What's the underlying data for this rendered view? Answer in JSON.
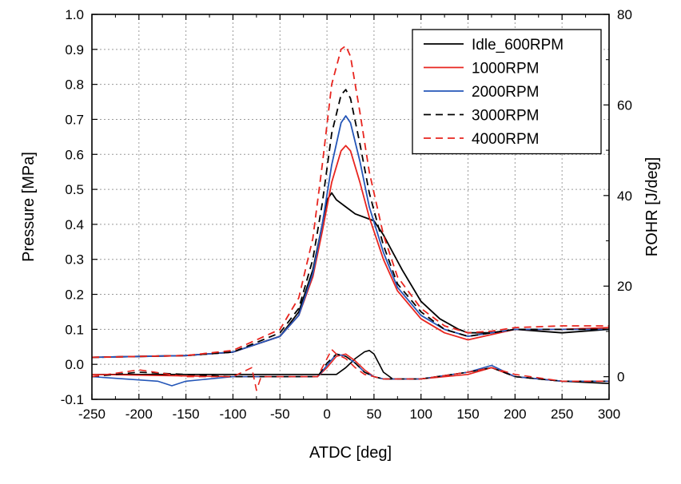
{
  "chart_data": {
    "type": "line",
    "xlabel": "ATDC [deg]",
    "ylabel": "Pressure [MPa]",
    "y2label": "ROHR [J/deg]",
    "xlim": [
      -250,
      300
    ],
    "ylim": [
      -0.1,
      1.0
    ],
    "y2lim": [
      -5,
      80
    ],
    "grid": true,
    "legend_position": "top-right",
    "x_ticks": [
      "-250",
      "-200",
      "-150",
      "-100",
      "-50",
      "0",
      "50",
      "100",
      "150",
      "200",
      "250",
      "300"
    ],
    "y_ticks": [
      "-0.1",
      "0.0",
      "0.1",
      "0.2",
      "0.3",
      "0.4",
      "0.5",
      "0.6",
      "0.7",
      "0.8",
      "0.9",
      "1.0"
    ],
    "y2_ticks": [
      "0",
      "20",
      "40",
      "60",
      "80"
    ],
    "series": [
      {
        "name": "Idle_600RPM",
        "color": "#000000",
        "dash": "solid",
        "pressure": [
          [
            -250,
            0.02
          ],
          [
            -150,
            0.025
          ],
          [
            -100,
            0.035
          ],
          [
            -50,
            0.08
          ],
          [
            -30,
            0.15
          ],
          [
            -15,
            0.27
          ],
          [
            -5,
            0.4
          ],
          [
            0,
            0.47
          ],
          [
            5,
            0.49
          ],
          [
            10,
            0.47
          ],
          [
            20,
            0.45
          ],
          [
            30,
            0.43
          ],
          [
            40,
            0.42
          ],
          [
            50,
            0.41
          ],
          [
            60,
            0.37
          ],
          [
            70,
            0.32
          ],
          [
            80,
            0.27
          ],
          [
            100,
            0.18
          ],
          [
            120,
            0.13
          ],
          [
            140,
            0.1
          ],
          [
            150,
            0.09
          ],
          [
            175,
            0.09
          ],
          [
            200,
            0.1
          ],
          [
            250,
            0.09
          ],
          [
            300,
            0.1
          ]
        ],
        "rohr": [
          [
            -250,
            0.5
          ],
          [
            -200,
            0.5
          ],
          [
            -100,
            0.5
          ],
          [
            -50,
            0.5
          ],
          [
            0,
            0.5
          ],
          [
            10,
            0.5
          ],
          [
            20,
            2
          ],
          [
            30,
            4
          ],
          [
            40,
            5.5
          ],
          [
            45,
            5.8
          ],
          [
            50,
            5
          ],
          [
            55,
            3
          ],
          [
            60,
            1
          ],
          [
            70,
            -0.5
          ],
          [
            100,
            -0.5
          ],
          [
            150,
            1
          ],
          [
            175,
            2
          ],
          [
            200,
            0
          ],
          [
            250,
            -1
          ],
          [
            300,
            -1.5
          ]
        ]
      },
      {
        "name": "1000RPM",
        "color": "#e8251f",
        "dash": "solid",
        "pressure": [
          [
            -250,
            0.02
          ],
          [
            -150,
            0.025
          ],
          [
            -100,
            0.035
          ],
          [
            -50,
            0.08
          ],
          [
            -30,
            0.14
          ],
          [
            -15,
            0.25
          ],
          [
            -5,
            0.38
          ],
          [
            5,
            0.52
          ],
          [
            15,
            0.61
          ],
          [
            20,
            0.625
          ],
          [
            25,
            0.61
          ],
          [
            35,
            0.52
          ],
          [
            45,
            0.42
          ],
          [
            60,
            0.3
          ],
          [
            75,
            0.21
          ],
          [
            100,
            0.13
          ],
          [
            125,
            0.09
          ],
          [
            150,
            0.07
          ],
          [
            175,
            0.085
          ],
          [
            200,
            0.1
          ],
          [
            250,
            0.1
          ],
          [
            300,
            0.105
          ]
        ],
        "rohr": [
          [
            -250,
            0.5
          ],
          [
            -100,
            0
          ],
          [
            -50,
            0
          ],
          [
            -10,
            0
          ],
          [
            0,
            2
          ],
          [
            10,
            4.5
          ],
          [
            20,
            5
          ],
          [
            30,
            3.5
          ],
          [
            40,
            1.5
          ],
          [
            50,
            0
          ],
          [
            60,
            -0.5
          ],
          [
            100,
            -0.5
          ],
          [
            150,
            0.5
          ],
          [
            175,
            2
          ],
          [
            200,
            0
          ],
          [
            250,
            -1
          ],
          [
            300,
            -1
          ]
        ]
      },
      {
        "name": "2000RPM",
        "color": "#2456b8",
        "dash": "solid",
        "pressure": [
          [
            -250,
            0.02
          ],
          [
            -150,
            0.025
          ],
          [
            -100,
            0.035
          ],
          [
            -50,
            0.08
          ],
          [
            -30,
            0.14
          ],
          [
            -15,
            0.26
          ],
          [
            -5,
            0.4
          ],
          [
            5,
            0.57
          ],
          [
            15,
            0.69
          ],
          [
            20,
            0.71
          ],
          [
            25,
            0.69
          ],
          [
            35,
            0.58
          ],
          [
            45,
            0.45
          ],
          [
            60,
            0.32
          ],
          [
            75,
            0.22
          ],
          [
            100,
            0.14
          ],
          [
            125,
            0.1
          ],
          [
            150,
            0.08
          ],
          [
            175,
            0.09
          ],
          [
            200,
            0.1
          ],
          [
            250,
            0.1
          ],
          [
            300,
            0.1
          ]
        ],
        "rohr": [
          [
            -250,
            0
          ],
          [
            -180,
            -1
          ],
          [
            -165,
            -2
          ],
          [
            -150,
            -1
          ],
          [
            -100,
            0
          ],
          [
            -50,
            0
          ],
          [
            -10,
            0
          ],
          [
            0,
            2.5
          ],
          [
            10,
            5
          ],
          [
            20,
            4.5
          ],
          [
            30,
            3
          ],
          [
            40,
            1
          ],
          [
            50,
            0
          ],
          [
            60,
            -0.5
          ],
          [
            100,
            -0.5
          ],
          [
            150,
            1
          ],
          [
            175,
            2.5
          ],
          [
            200,
            0
          ],
          [
            250,
            -1
          ],
          [
            300,
            -1
          ]
        ]
      },
      {
        "name": "3000RPM",
        "color": "#000000",
        "dash": "dashed",
        "pressure": [
          [
            -250,
            0.02
          ],
          [
            -150,
            0.025
          ],
          [
            -100,
            0.035
          ],
          [
            -50,
            0.09
          ],
          [
            -30,
            0.16
          ],
          [
            -15,
            0.3
          ],
          [
            -5,
            0.46
          ],
          [
            5,
            0.66
          ],
          [
            15,
            0.77
          ],
          [
            20,
            0.785
          ],
          [
            25,
            0.76
          ],
          [
            35,
            0.63
          ],
          [
            45,
            0.49
          ],
          [
            60,
            0.34
          ],
          [
            75,
            0.23
          ],
          [
            100,
            0.15
          ],
          [
            125,
            0.1
          ],
          [
            150,
            0.08
          ],
          [
            175,
            0.09
          ],
          [
            200,
            0.1
          ],
          [
            250,
            0.1
          ],
          [
            300,
            0.1
          ]
        ],
        "rohr": [
          [
            -250,
            0
          ],
          [
            -200,
            1
          ],
          [
            -100,
            0
          ],
          [
            -50,
            0
          ],
          [
            -10,
            0
          ],
          [
            0,
            3
          ],
          [
            10,
            5
          ],
          [
            20,
            4.5
          ],
          [
            30,
            3
          ],
          [
            40,
            1
          ],
          [
            50,
            0
          ],
          [
            60,
            -0.5
          ],
          [
            100,
            -0.5
          ],
          [
            150,
            1
          ],
          [
            175,
            2
          ],
          [
            200,
            0
          ],
          [
            250,
            -1
          ],
          [
            300,
            -1
          ]
        ]
      },
      {
        "name": "4000RPM",
        "color": "#e8251f",
        "dash": "dashed",
        "pressure": [
          [
            -250,
            0.02
          ],
          [
            -150,
            0.025
          ],
          [
            -100,
            0.04
          ],
          [
            -50,
            0.1
          ],
          [
            -30,
            0.19
          ],
          [
            -15,
            0.36
          ],
          [
            -5,
            0.57
          ],
          [
            5,
            0.8
          ],
          [
            15,
            0.9
          ],
          [
            20,
            0.91
          ],
          [
            25,
            0.88
          ],
          [
            35,
            0.72
          ],
          [
            45,
            0.55
          ],
          [
            60,
            0.37
          ],
          [
            75,
            0.25
          ],
          [
            100,
            0.16
          ],
          [
            125,
            0.11
          ],
          [
            150,
            0.09
          ],
          [
            175,
            0.095
          ],
          [
            200,
            0.105
          ],
          [
            250,
            0.11
          ],
          [
            300,
            0.11
          ]
        ],
        "rohr": [
          [
            -250,
            0
          ],
          [
            -200,
            1.5
          ],
          [
            -150,
            0
          ],
          [
            -100,
            0
          ],
          [
            -80,
            2
          ],
          [
            -75,
            -3
          ],
          [
            -70,
            0
          ],
          [
            -50,
            0
          ],
          [
            -10,
            0
          ],
          [
            0,
            4
          ],
          [
            5,
            6
          ],
          [
            10,
            5
          ],
          [
            20,
            4
          ],
          [
            30,
            2
          ],
          [
            40,
            0.5
          ],
          [
            50,
            0
          ],
          [
            60,
            -0.5
          ],
          [
            100,
            -0.5
          ],
          [
            150,
            1
          ],
          [
            175,
            2
          ],
          [
            200,
            0.5
          ],
          [
            250,
            -1
          ],
          [
            300,
            -1
          ]
        ]
      }
    ]
  }
}
